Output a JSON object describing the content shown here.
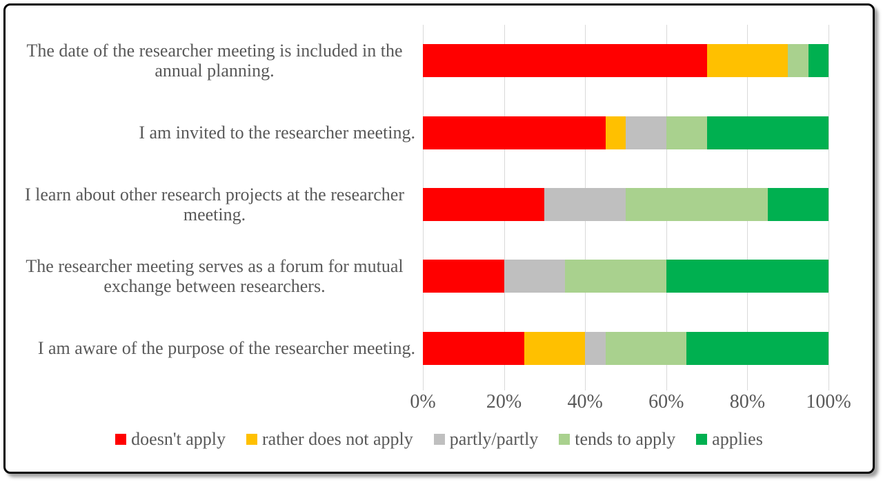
{
  "chart_data": {
    "type": "bar",
    "orientation": "horizontal",
    "stacked": true,
    "title": "",
    "xlabel": "",
    "ylabel": "",
    "grid": true,
    "gridline_color": "#D9D9D9",
    "text_color": "#595959",
    "categories": [
      "The date of the researcher meeting is included in the annual planning.",
      "I am invited to the researcher meeting.",
      "I learn about other research projects at the researcher meeting.",
      "The researcher meeting serves as a forum for mutual exchange between researchers.",
      "I am aware of the purpose of the researcher meeting."
    ],
    "series": [
      {
        "name": "doesn't apply",
        "color": "#FF0000",
        "values": [
          70,
          45,
          30,
          20,
          25
        ]
      },
      {
        "name": "rather does not apply",
        "color": "#FFC000",
        "values": [
          20,
          5,
          0,
          0,
          15
        ]
      },
      {
        "name": "partly/partly",
        "color": "#BFBFBF",
        "values": [
          0,
          10,
          20,
          15,
          5
        ]
      },
      {
        "name": "tends to apply",
        "color": "#A9D18E",
        "values": [
          5,
          10,
          35,
          25,
          20
        ]
      },
      {
        "name": "applies",
        "color": "#00B050",
        "values": [
          5,
          30,
          15,
          40,
          35
        ]
      }
    ],
    "x_axis": {
      "min": 0,
      "max": 100,
      "tick_step": 20,
      "tick_labels": [
        "0%",
        "20%",
        "40%",
        "60%",
        "80%",
        "100%"
      ]
    },
    "legend": {
      "position": "bottom",
      "entries": [
        "doesn't apply",
        "rather does not apply",
        "partly/partly",
        "tends to apply",
        "applies"
      ]
    }
  }
}
